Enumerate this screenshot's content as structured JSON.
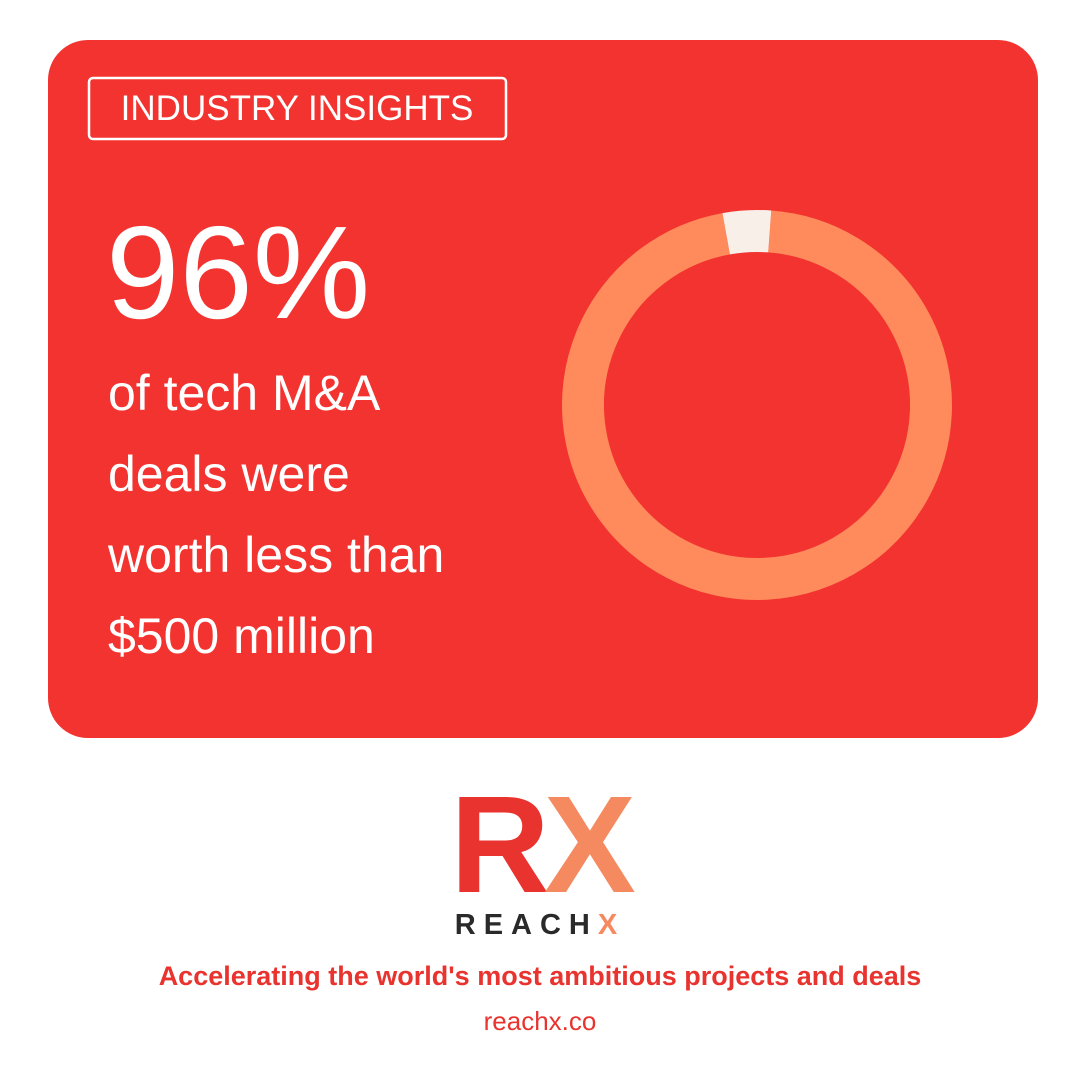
{
  "badge": "INDUSTRY INSIGHTS",
  "description": [
    "of tech M&A",
    "deals were",
    "worth less than",
    "$500 million"
  ],
  "chart_data": {
    "type": "donut",
    "values": [
      96,
      4
    ],
    "value_labels": [
      "96%",
      null
    ],
    "colors": [
      "#ff8a5c",
      "#f8efe9"
    ]
  },
  "logo": {
    "mark_left": "R",
    "mark_right": "X",
    "name": "REACH",
    "name_accent": "X"
  },
  "tagline": "Accelerating the world's most ambitious projects and deals",
  "website": "reachx.co"
}
